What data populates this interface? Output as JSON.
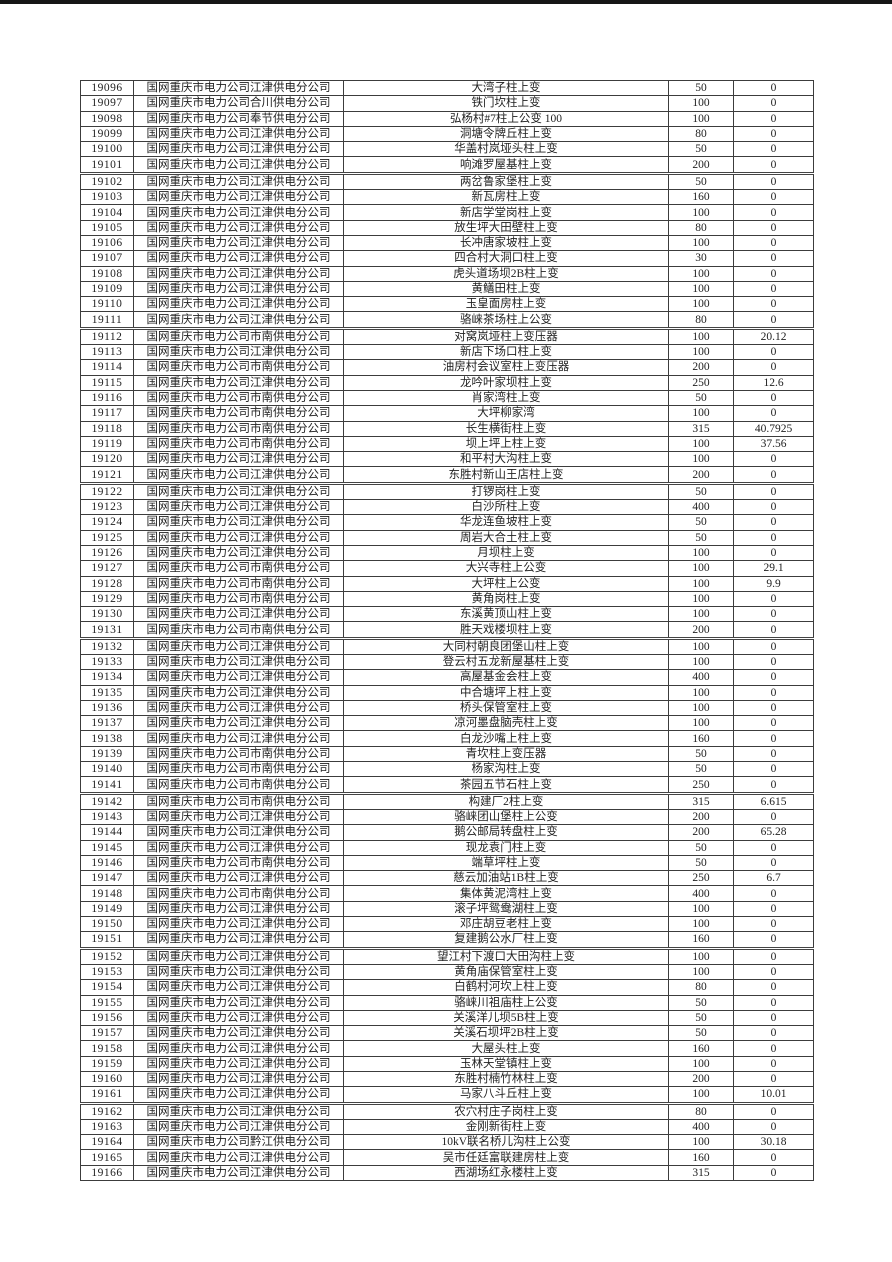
{
  "page": {
    "background_color": "#ffffff",
    "top_bar_color": "#161616",
    "text_color": "#222222",
    "grid_color": "#3c3c3c"
  },
  "table": {
    "columns": [
      "row-id",
      "company",
      "equipment-name",
      "capacity",
      "value"
    ],
    "thick_separator_after_ids": [
      "19101",
      "19111",
      "19121",
      "19131",
      "19141",
      "19151",
      "19161"
    ],
    "rows": [
      [
        "19096",
        "国网重庆市电力公司江津供电分公司",
        "大湾子柱上变",
        "50",
        "0"
      ],
      [
        "19097",
        "国网重庆市电力公司合川供电分公司",
        "铁门坎柱上变",
        "100",
        "0"
      ],
      [
        "19098",
        "国网重庆市电力公司奉节供电分公司",
        "弘杨村#7柱上公变 100",
        "100",
        "0"
      ],
      [
        "19099",
        "国网重庆市电力公司江津供电分公司",
        "洞塘令牌丘柱上变",
        "80",
        "0"
      ],
      [
        "19100",
        "国网重庆市电力公司江津供电分公司",
        "华盖村岚垭头柱上变",
        "50",
        "0"
      ],
      [
        "19101",
        "国网重庆市电力公司江津供电分公司",
        "响滩罗屋基柱上变",
        "200",
        "0"
      ],
      [
        "19102",
        "国网重庆市电力公司江津供电分公司",
        "两岔鲁家堡柱上变",
        "50",
        "0"
      ],
      [
        "19103",
        "国网重庆市电力公司江津供电分公司",
        "新瓦房柱上变",
        "160",
        "0"
      ],
      [
        "19104",
        "国网重庆市电力公司江津供电分公司",
        "新店学堂岗柱上变",
        "100",
        "0"
      ],
      [
        "19105",
        "国网重庆市电力公司江津供电分公司",
        "放生坪大田壁柱上变",
        "80",
        "0"
      ],
      [
        "19106",
        "国网重庆市电力公司江津供电分公司",
        "长冲唐家坡柱上变",
        "100",
        "0"
      ],
      [
        "19107",
        "国网重庆市电力公司江津供电分公司",
        "四合村大洞口柱上变",
        "30",
        "0"
      ],
      [
        "19108",
        "国网重庆市电力公司江津供电分公司",
        "虎头道场坝2B柱上变",
        "100",
        "0"
      ],
      [
        "19109",
        "国网重庆市电力公司江津供电分公司",
        "黄鳝田柱上变",
        "100",
        "0"
      ],
      [
        "19110",
        "国网重庆市电力公司江津供电分公司",
        "玉皇面房柱上变",
        "100",
        "0"
      ],
      [
        "19111",
        "国网重庆市电力公司江津供电分公司",
        "骆崃茶场柱上公变",
        "80",
        "0"
      ],
      [
        "19112",
        "国网重庆市电力公司市南供电分公司",
        "对窝岚垭柱上变压器",
        "100",
        "20.12"
      ],
      [
        "19113",
        "国网重庆市电力公司江津供电分公司",
        "新店下场口柱上变",
        "100",
        "0"
      ],
      [
        "19114",
        "国网重庆市电力公司市南供电分公司",
        "油房村会议室柱上变压器",
        "200",
        "0"
      ],
      [
        "19115",
        "国网重庆市电力公司江津供电分公司",
        "龙吟叶家坝柱上变",
        "250",
        "12.6"
      ],
      [
        "19116",
        "国网重庆市电力公司市南供电分公司",
        "肖家湾柱上变",
        "50",
        "0"
      ],
      [
        "19117",
        "国网重庆市电力公司市南供电分公司",
        "大坪柳家湾",
        "100",
        "0"
      ],
      [
        "19118",
        "国网重庆市电力公司市南供电分公司",
        "长生横街柱上变",
        "315",
        "40.7925"
      ],
      [
        "19119",
        "国网重庆市电力公司市南供电分公司",
        "坝上坪上柱上变",
        "100",
        "37.56"
      ],
      [
        "19120",
        "国网重庆市电力公司江津供电分公司",
        "和平村大沟柱上变",
        "100",
        "0"
      ],
      [
        "19121",
        "国网重庆市电力公司江津供电分公司",
        "东胜村新山王店柱上变",
        "200",
        "0"
      ],
      [
        "19122",
        "国网重庆市电力公司江津供电分公司",
        "打锣岗柱上变",
        "50",
        "0"
      ],
      [
        "19123",
        "国网重庆市电力公司江津供电分公司",
        "白沙所柱上变",
        "400",
        "0"
      ],
      [
        "19124",
        "国网重庆市电力公司江津供电分公司",
        "华龙连鱼坡柱上变",
        "50",
        "0"
      ],
      [
        "19125",
        "国网重庆市电力公司江津供电分公司",
        "周岩大合土柱上变",
        "50",
        "0"
      ],
      [
        "19126",
        "国网重庆市电力公司江津供电分公司",
        "月坝柱上变",
        "100",
        "0"
      ],
      [
        "19127",
        "国网重庆市电力公司市南供电分公司",
        "大兴寺柱上公变",
        "100",
        "29.1"
      ],
      [
        "19128",
        "国网重庆市电力公司市南供电分公司",
        "大坪柱上公变",
        "100",
        "9.9"
      ],
      [
        "19129",
        "国网重庆市电力公司市南供电分公司",
        "黄角岗柱上变",
        "100",
        "0"
      ],
      [
        "19130",
        "国网重庆市电力公司江津供电分公司",
        "东溪黄顶山柱上变",
        "100",
        "0"
      ],
      [
        "19131",
        "国网重庆市电力公司市南供电分公司",
        "胜天戏楼坝柱上变",
        "200",
        "0"
      ],
      [
        "19132",
        "国网重庆市电力公司江津供电分公司",
        "大同村朝良团堡山柱上变",
        "100",
        "0"
      ],
      [
        "19133",
        "国网重庆市电力公司江津供电分公司",
        "登云村五龙新屋基柱上变",
        "100",
        "0"
      ],
      [
        "19134",
        "国网重庆市电力公司江津供电分公司",
        "高屋基金会柱上变",
        "400",
        "0"
      ],
      [
        "19135",
        "国网重庆市电力公司江津供电分公司",
        "中合塘坪上柱上变",
        "100",
        "0"
      ],
      [
        "19136",
        "国网重庆市电力公司江津供电分公司",
        "桥头保管室柱上变",
        "100",
        "0"
      ],
      [
        "19137",
        "国网重庆市电力公司江津供电分公司",
        "凉河墨盘脑壳柱上变",
        "100",
        "0"
      ],
      [
        "19138",
        "国网重庆市电力公司江津供电分公司",
        "白龙沙嘴上柱上变",
        "160",
        "0"
      ],
      [
        "19139",
        "国网重庆市电力公司市南供电分公司",
        "青坎柱上变压器",
        "50",
        "0"
      ],
      [
        "19140",
        "国网重庆市电力公司市南供电分公司",
        "杨家沟柱上变",
        "50",
        "0"
      ],
      [
        "19141",
        "国网重庆市电力公司市南供电分公司",
        "茶园五节石柱上变",
        "250",
        "0"
      ],
      [
        "19142",
        "国网重庆市电力公司市南供电分公司",
        "构建厂2柱上变",
        "315",
        "6.615"
      ],
      [
        "19143",
        "国网重庆市电力公司江津供电分公司",
        "骆崃团山堡柱上公变",
        "200",
        "0"
      ],
      [
        "19144",
        "国网重庆市电力公司江津供电分公司",
        "鹅公邮局转盘柱上变",
        "200",
        "65.28"
      ],
      [
        "19145",
        "国网重庆市电力公司江津供电分公司",
        "现龙袁门柱上变",
        "50",
        "0"
      ],
      [
        "19146",
        "国网重庆市电力公司市南供电分公司",
        "端草坪柱上变",
        "50",
        "0"
      ],
      [
        "19147",
        "国网重庆市电力公司江津供电分公司",
        "慈云加油站1B柱上变",
        "250",
        "6.7"
      ],
      [
        "19148",
        "国网重庆市电力公司市南供电分公司",
        "集体黄泥湾柱上变",
        "400",
        "0"
      ],
      [
        "19149",
        "国网重庆市电力公司江津供电分公司",
        "滚子坪鸳鸯湖柱上变",
        "100",
        "0"
      ],
      [
        "19150",
        "国网重庆市电力公司江津供电分公司",
        "邓庄胡豆老柱上变",
        "100",
        "0"
      ],
      [
        "19151",
        "国网重庆市电力公司江津供电分公司",
        "复建鹅公水厂柱上变",
        "160",
        "0"
      ],
      [
        "19152",
        "国网重庆市电力公司江津供电分公司",
        "望江村下渡口大田沟柱上变",
        "100",
        "0"
      ],
      [
        "19153",
        "国网重庆市电力公司江津供电分公司",
        "黄角庙保管室柱上变",
        "100",
        "0"
      ],
      [
        "19154",
        "国网重庆市电力公司江津供电分公司",
        "白鹤村河坎上柱上变",
        "80",
        "0"
      ],
      [
        "19155",
        "国网重庆市电力公司江津供电分公司",
        "骆崃川祖庙柱上公变",
        "50",
        "0"
      ],
      [
        "19156",
        "国网重庆市电力公司江津供电分公司",
        "关溪洋儿坝5B柱上变",
        "50",
        "0"
      ],
      [
        "19157",
        "国网重庆市电力公司江津供电分公司",
        "关溪石坝坪2B柱上变",
        "50",
        "0"
      ],
      [
        "19158",
        "国网重庆市电力公司江津供电分公司",
        "大屋头柱上变",
        "160",
        "0"
      ],
      [
        "19159",
        "国网重庆市电力公司江津供电分公司",
        "玉林天堂镇柱上变",
        "100",
        "0"
      ],
      [
        "19160",
        "国网重庆市电力公司江津供电分公司",
        "东胜村楠竹林柱上变",
        "200",
        "0"
      ],
      [
        "19161",
        "国网重庆市电力公司江津供电分公司",
        "马家八斗丘柱上变",
        "100",
        "10.01"
      ],
      [
        "19162",
        "国网重庆市电力公司江津供电分公司",
        "农穴村庄子岗柱上变",
        "80",
        "0"
      ],
      [
        "19163",
        "国网重庆市电力公司江津供电分公司",
        "金刚新街柱上变",
        "400",
        "0"
      ],
      [
        "19164",
        "国网重庆市电力公司黔江供电分公司",
        "10kV联名桥儿沟柱上公变",
        "100",
        "30.18"
      ],
      [
        "19165",
        "国网重庆市电力公司江津供电分公司",
        "吴市任廷富联建房柱上变",
        "160",
        "0"
      ],
      [
        "19166",
        "国网重庆市电力公司江津供电分公司",
        "西湖场红永楼柱上变",
        "315",
        "0"
      ]
    ]
  }
}
